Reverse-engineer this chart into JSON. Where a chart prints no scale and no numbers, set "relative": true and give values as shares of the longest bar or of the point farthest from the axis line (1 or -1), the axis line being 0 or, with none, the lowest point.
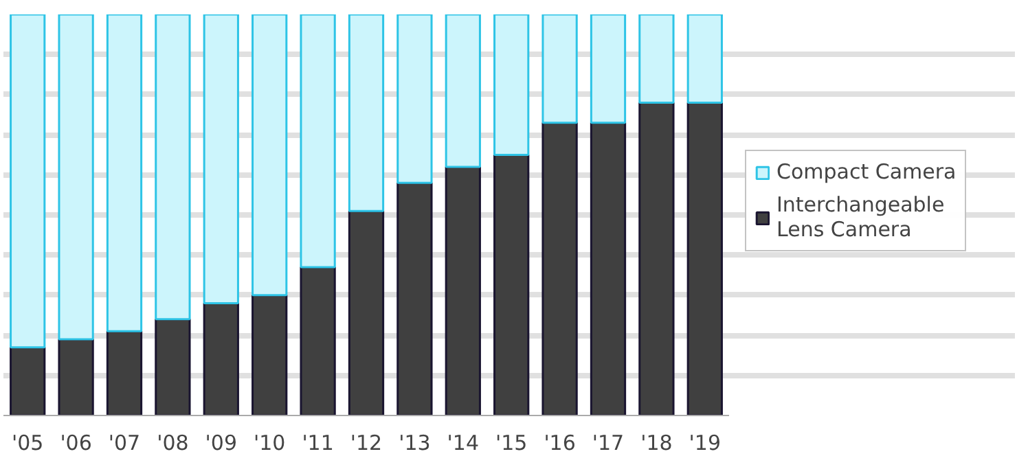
{
  "chart_data": {
    "type": "bar",
    "stacked": true,
    "relative": true,
    "grid": "y",
    "legend": "right",
    "categories": [
      "'05",
      "'06",
      "'07",
      "'08",
      "'09",
      "'10",
      "'11",
      "'12",
      "'13",
      "'14",
      "'15",
      "'16",
      "'17",
      "'18",
      "'19"
    ],
    "series": [
      {
        "name": "Interchangeable Lens Camera",
        "color": "#404040",
        "values": [
          0.17,
          0.19,
          0.21,
          0.24,
          0.28,
          0.3,
          0.37,
          0.51,
          0.58,
          0.62,
          0.65,
          0.73,
          0.73,
          0.78,
          0.78
        ]
      },
      {
        "name": "Compact Camera",
        "color": "#ccf5fc",
        "values": [
          0.83,
          0.81,
          0.79,
          0.76,
          0.72,
          0.7,
          0.63,
          0.49,
          0.42,
          0.38,
          0.35,
          0.27,
          0.27,
          0.22,
          0.22
        ]
      }
    ]
  }
}
